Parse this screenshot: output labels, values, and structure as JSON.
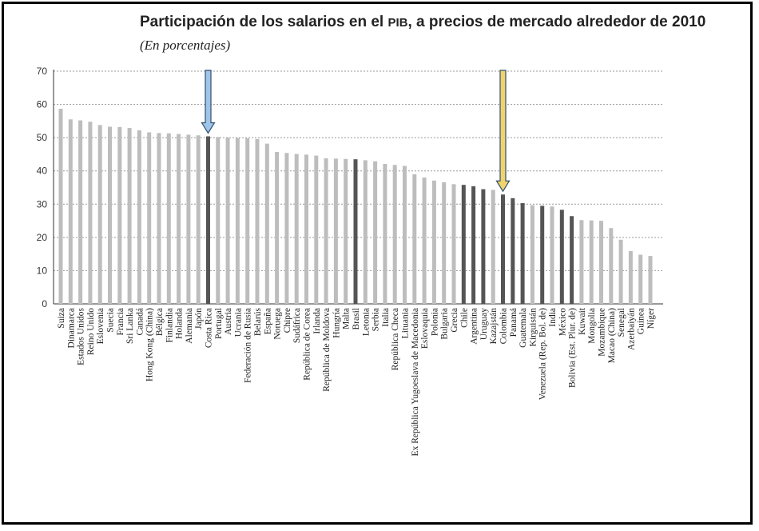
{
  "chart_data": {
    "type": "bar",
    "title_main": "Participación de los salarios en el ",
    "title_pib": "PIB",
    "title_end": ", a precios de mercado alrededor de 2010",
    "subtitle": "(En porcentajes)",
    "ylim": [
      0,
      70
    ],
    "yticks": [
      "0",
      "10",
      "20",
      "30",
      "40",
      "50",
      "60",
      "70"
    ],
    "grid": true,
    "colors": {
      "default": "#bdbdbd",
      "highlight": "#555555"
    },
    "highlighted": [
      "Costa Rica",
      "Brasil",
      "Chile",
      "Argentina",
      "Uruguay",
      "Colombia",
      "Panamá",
      "Guatemala",
      "Venezuela (Rep. Bol. de)",
      "México",
      "Bolivia (Est. Plur. de)"
    ],
    "arrows": [
      {
        "category": "Costa Rica",
        "color": "#9fc5e8"
      },
      {
        "category": "Colombia",
        "color": "#f1d36b"
      }
    ],
    "categories": [
      "Suiza",
      "Dinamarca",
      "Estados Unidos",
      "Reino Unido",
      "Eslovenia",
      "Suecia",
      "Francia",
      "Sri Lanka",
      "Canadá",
      "Hong Kong (China)",
      "Bélgica",
      "Finlandia",
      "Holanda",
      "Alemania",
      "Japón",
      "Costa Rica",
      "Portugal",
      "Austria",
      "Ucrania",
      "Federación de Rusia",
      "Belarús",
      "España",
      "Noruega",
      "Chipre",
      "Sudáfrica",
      "República de Corea",
      "Irlanda",
      "República de Moldova",
      "Hungría",
      "Malta",
      "Brasil",
      "Letonia",
      "Serbia",
      "Italia",
      "República Checa",
      "Lituania",
      "Ex República Yugoeslava de Macedonia",
      "Eslovaquia",
      "Polonia",
      "Bulgaria",
      "Grecia",
      "Chile",
      "Argentina",
      "Uruguay",
      "Kazajstán",
      "Colombia",
      "Panamá",
      "Guatemala",
      "Kirguistán",
      "Venezuela (Rep. Bol. de)",
      "India",
      "México",
      "Bolivia (Est. Plur. de)",
      "Kuwait",
      "Mongolia",
      "Mozambique",
      "Macao (China)",
      "Senegal",
      "Azerbaiyán",
      "Guinea",
      "Níger"
    ],
    "values": [
      58.7,
      55.5,
      55.2,
      54.8,
      53.8,
      53.3,
      53.2,
      52.9,
      52.2,
      51.6,
      51.4,
      51.3,
      51.1,
      50.9,
      50.7,
      50.4,
      50.2,
      50.0,
      49.9,
      49.8,
      49.6,
      48.2,
      45.7,
      45.4,
      45.1,
      44.9,
      44.6,
      43.8,
      43.7,
      43.6,
      43.5,
      43.2,
      42.9,
      42.1,
      41.8,
      41.5,
      39.0,
      38.0,
      37.1,
      36.6,
      36.0,
      35.8,
      35.4,
      34.5,
      34.3,
      32.9,
      31.8,
      30.3,
      29.7,
      29.5,
      29.3,
      28.3,
      26.4,
      25.2,
      25.1,
      25.0,
      22.8,
      19.3,
      15.9,
      14.8,
      14.4
    ]
  }
}
